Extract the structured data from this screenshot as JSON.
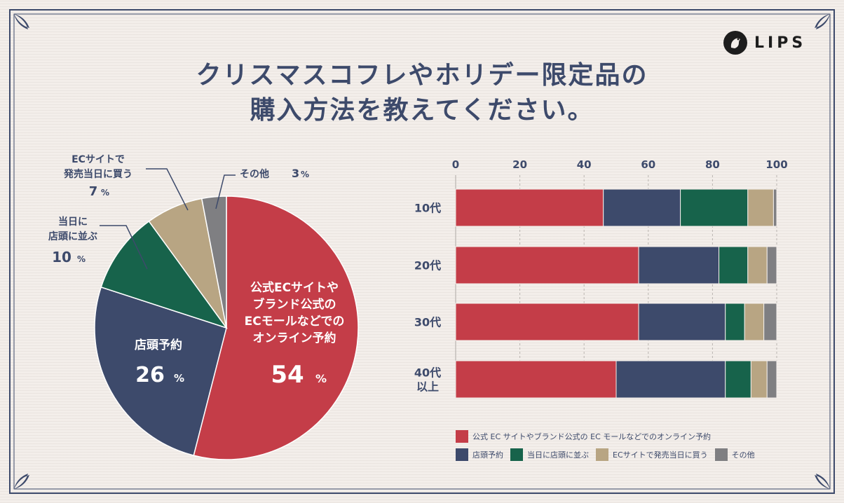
{
  "brand": {
    "name": "LIPS"
  },
  "title": {
    "line1": "クリスマスコフレやホリデー限定品の",
    "line2": "購入方法を教えてください。"
  },
  "colors": {
    "online": "#c43d48",
    "store_reserve": "#3d4a6b",
    "queue": "#17634b",
    "ec_same_day": "#b8a583",
    "other": "#7f7f82",
    "text": "#3d4a6b"
  },
  "chart_data": [
    {
      "type": "pie",
      "slices": [
        {
          "key": "online",
          "label_lines": [
            "公式ECサイトや",
            "ブランド公式の",
            "ECモールなどでの",
            "オンライン予約"
          ],
          "value": 54,
          "pct_text": "54",
          "unit": "%"
        },
        {
          "key": "store_reserve",
          "label_lines": [
            "店頭予約"
          ],
          "value": 26,
          "pct_text": "26",
          "unit": "%"
        },
        {
          "key": "queue",
          "label_lines": [
            "当日に",
            "店頭に並ぶ"
          ],
          "value": 10,
          "pct_text": "10",
          "unit": "%"
        },
        {
          "key": "ec_same_day",
          "label_lines": [
            "ECサイトで",
            "発売当日に買う"
          ],
          "value": 7,
          "pct_text": "7",
          "unit": "%"
        },
        {
          "key": "other",
          "label_lines": [
            "その他"
          ],
          "value": 3,
          "pct_text": "3",
          "unit": "%"
        }
      ]
    },
    {
      "type": "bar",
      "orientation": "horizontal",
      "stacked": true,
      "xlim": [
        0,
        100
      ],
      "xticks": [
        0,
        20,
        40,
        60,
        80,
        100
      ],
      "categories": [
        [
          "10代"
        ],
        [
          "20代"
        ],
        [
          "30代"
        ],
        [
          "40代",
          "以上"
        ]
      ],
      "series": [
        {
          "key": "online",
          "name": "公式 EC サイトやブランド公式の EC モールなどでのオンライン予約",
          "values": [
            46,
            57,
            57,
            50
          ]
        },
        {
          "key": "store_reserve",
          "name": "店頭予約",
          "values": [
            24,
            25,
            27,
            34
          ]
        },
        {
          "key": "queue",
          "name": "当日に店頭に並ぶ",
          "values": [
            21,
            9,
            6,
            8
          ]
        },
        {
          "key": "ec_same_day",
          "name": "ECサイトで発売当日に買う",
          "values": [
            8,
            6,
            6,
            5
          ]
        },
        {
          "key": "other",
          "name": "その他",
          "values": [
            1,
            3,
            4,
            3
          ]
        }
      ]
    }
  ]
}
